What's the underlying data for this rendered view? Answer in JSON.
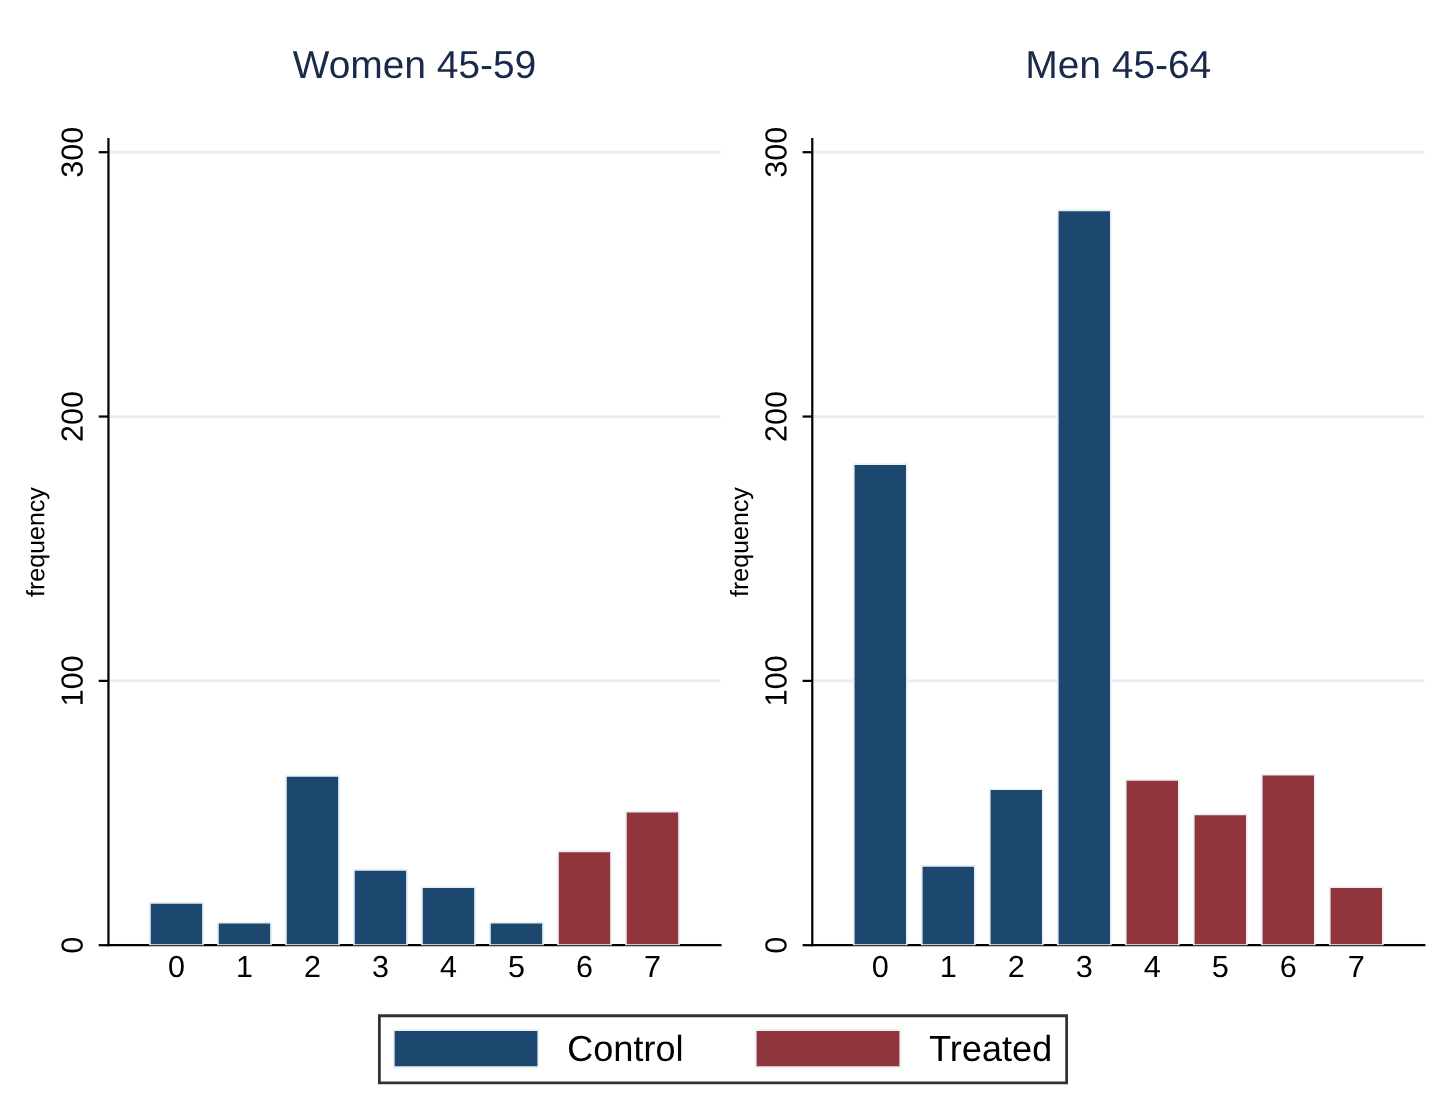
{
  "chart_data": [
    {
      "type": "bar",
      "title": "Women 45-59",
      "ylabel": "frequency",
      "categories": [
        "0",
        "1",
        "2",
        "3",
        "4",
        "5",
        "6",
        "7"
      ],
      "series": [
        {
          "name": "Control",
          "color": "#1c4870",
          "values": [
            16,
            8.5,
            64,
            28.5,
            22,
            8.5,
            null,
            null
          ]
        },
        {
          "name": "Treated",
          "color": "#90353c",
          "values": [
            null,
            null,
            null,
            null,
            null,
            null,
            35.5,
            50.5
          ]
        }
      ],
      "ylim": [
        0,
        305
      ],
      "yticks": [
        0,
        100,
        200,
        300
      ],
      "grid": "y",
      "legend": "bottom"
    },
    {
      "type": "bar",
      "title": "Men 45-64",
      "ylabel": "frequency",
      "categories": [
        "0",
        "1",
        "2",
        "3",
        "4",
        "5",
        "6",
        "7"
      ],
      "series": [
        {
          "color": "#1c4870",
          "values": [
            182,
            30,
            59,
            278,
            null,
            null,
            null,
            null
          ]
        },
        {
          "color": "#90353c",
          "values": [
            null,
            null,
            null,
            null,
            62.5,
            49.5,
            64.5,
            22
          ]
        }
      ],
      "ylim": [
        0,
        305
      ],
      "yticks": [
        0,
        100,
        200,
        300
      ],
      "grid": "y"
    }
  ]
}
